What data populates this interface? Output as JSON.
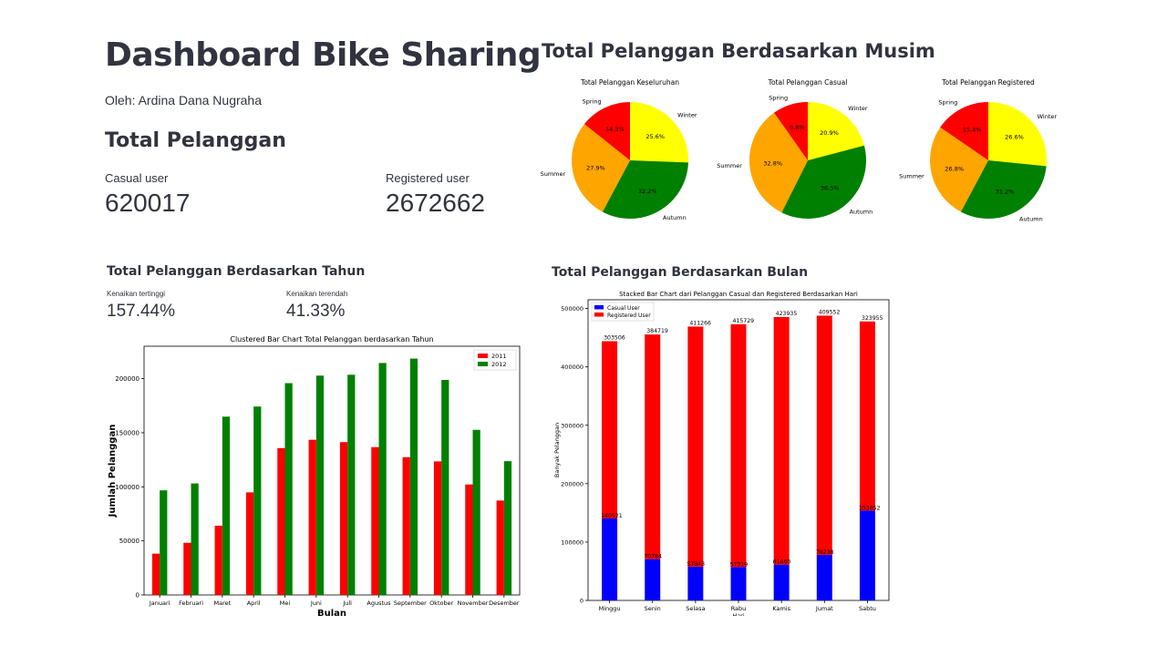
{
  "header": {
    "title": "Dashboard Bike Sharing",
    "author": "Oleh: Ardina Dana Nugraha"
  },
  "total": {
    "heading": "Total Pelanggan",
    "casual_label": "Casual user",
    "casual_value": "620017",
    "registered_label": "Registered user",
    "registered_value": "2672662"
  },
  "season": {
    "heading": "Total Pelanggan Berdasarkan Musim"
  },
  "year": {
    "heading": "Total Pelanggan Berdasarkan Tahun",
    "max_label": "Kenaikan tertinggi",
    "max_value": "157.44%",
    "min_label": "Kenaikan terendah",
    "min_value": "41.33%"
  },
  "month": {
    "heading": "Total Pelanggan Berdasarkan Bulan"
  },
  "colors": {
    "red": "#ff0000",
    "green": "#008000",
    "yellow": "#ffff00",
    "orange": "#ffa500",
    "blue": "#0000ff"
  },
  "chart_data": [
    {
      "type": "pie",
      "title": "Total Pelanggan Keseluruhan",
      "labels": [
        "Winter",
        "Autumn",
        "Summer",
        "Spring"
      ],
      "values": [
        25.6,
        32.2,
        27.9,
        14.3
      ],
      "pct_labels": [
        "25.6%",
        "32.2%",
        "27.9%",
        "14.3%"
      ],
      "colors": [
        "#ffff00",
        "#008000",
        "#ffa500",
        "#ff0000"
      ]
    },
    {
      "type": "pie",
      "title": "Total Pelanggan Casual",
      "labels": [
        "Winter",
        "Autumn",
        "Summer",
        "Spring"
      ],
      "values": [
        20.9,
        36.5,
        32.8,
        9.8
      ],
      "pct_labels": [
        "20.9%",
        "36.5%",
        "32.8%",
        "9.8%"
      ],
      "colors": [
        "#ffff00",
        "#008000",
        "#ffa500",
        "#ff0000"
      ]
    },
    {
      "type": "pie",
      "title": "Total Pelanggan Registered",
      "labels": [
        "Winter",
        "Autumn",
        "Summer",
        "Spring"
      ],
      "values": [
        26.6,
        31.2,
        26.8,
        15.4
      ],
      "pct_labels": [
        "26.6%",
        "31.2%",
        "26.8%",
        "15.4%"
      ],
      "colors": [
        "#ffff00",
        "#008000",
        "#ffa500",
        "#ff0000"
      ]
    },
    {
      "type": "bar",
      "title": "Clustered Bar Chart Total Pelanggan berdasarkan Tahun",
      "xlabel": "Bulan",
      "ylabel": "Jumlah Pelanggan",
      "categories": [
        "Januari",
        "Februari",
        "Maret",
        "April",
        "Mei",
        "Juni",
        "Juli",
        "Agustus",
        "September",
        "Oktober",
        "November",
        "Desember"
      ],
      "series": [
        {
          "name": "2011",
          "color": "#ff0000",
          "values": [
            38189,
            48215,
            64045,
            94870,
            135821,
            143512,
            141341,
            136691,
            127418,
            123511,
            102167,
            87323
          ]
        },
        {
          "name": "2012",
          "color": "#008000",
          "values": [
            96744,
            103137,
            164875,
            174224,
            195865,
            202830,
            203607,
            214503,
            218573,
            198841,
            152664,
            123713
          ]
        }
      ],
      "ylim": [
        0,
        230000
      ],
      "yticks": [
        0,
        50000,
        100000,
        150000,
        200000
      ],
      "ytick_labels": [
        "0",
        "50000",
        "100000",
        "150000",
        "200000"
      ]
    },
    {
      "type": "bar",
      "stacked": true,
      "title": "Stacked Bar Chart dari Pelanggan Casual dan Registered Berdasarkan Hari",
      "xlabel": "Hari",
      "ylabel": "Banyak Pelanggan",
      "categories": [
        "Minggu",
        "Senin",
        "Selasa",
        "Rabu",
        "Kamis",
        "Jumat",
        "Sabtu"
      ],
      "series": [
        {
          "name": "Casual User",
          "color": "#0000ff",
          "values": [
            140521,
            70784,
            57843,
            57319,
            61460,
            78238,
            153852
          ],
          "labels": [
            "140521",
            "70784",
            "57843",
            "57319",
            "61460",
            "78238",
            "153852"
          ]
        },
        {
          "name": "Registered User",
          "color": "#ff0000",
          "values": [
            303506,
            384719,
            411266,
            415729,
            423935,
            409552,
            323955
          ],
          "labels": [
            "303506",
            "384719",
            "411266",
            "415729",
            "423935",
            "409552",
            "323955"
          ]
        }
      ],
      "ylim": [
        0,
        515000
      ],
      "yticks": [
        0,
        100000,
        200000,
        300000,
        400000,
        500000
      ],
      "ytick_labels": [
        "0",
        "100000",
        "200000",
        "300000",
        "400000",
        "500000"
      ]
    }
  ]
}
